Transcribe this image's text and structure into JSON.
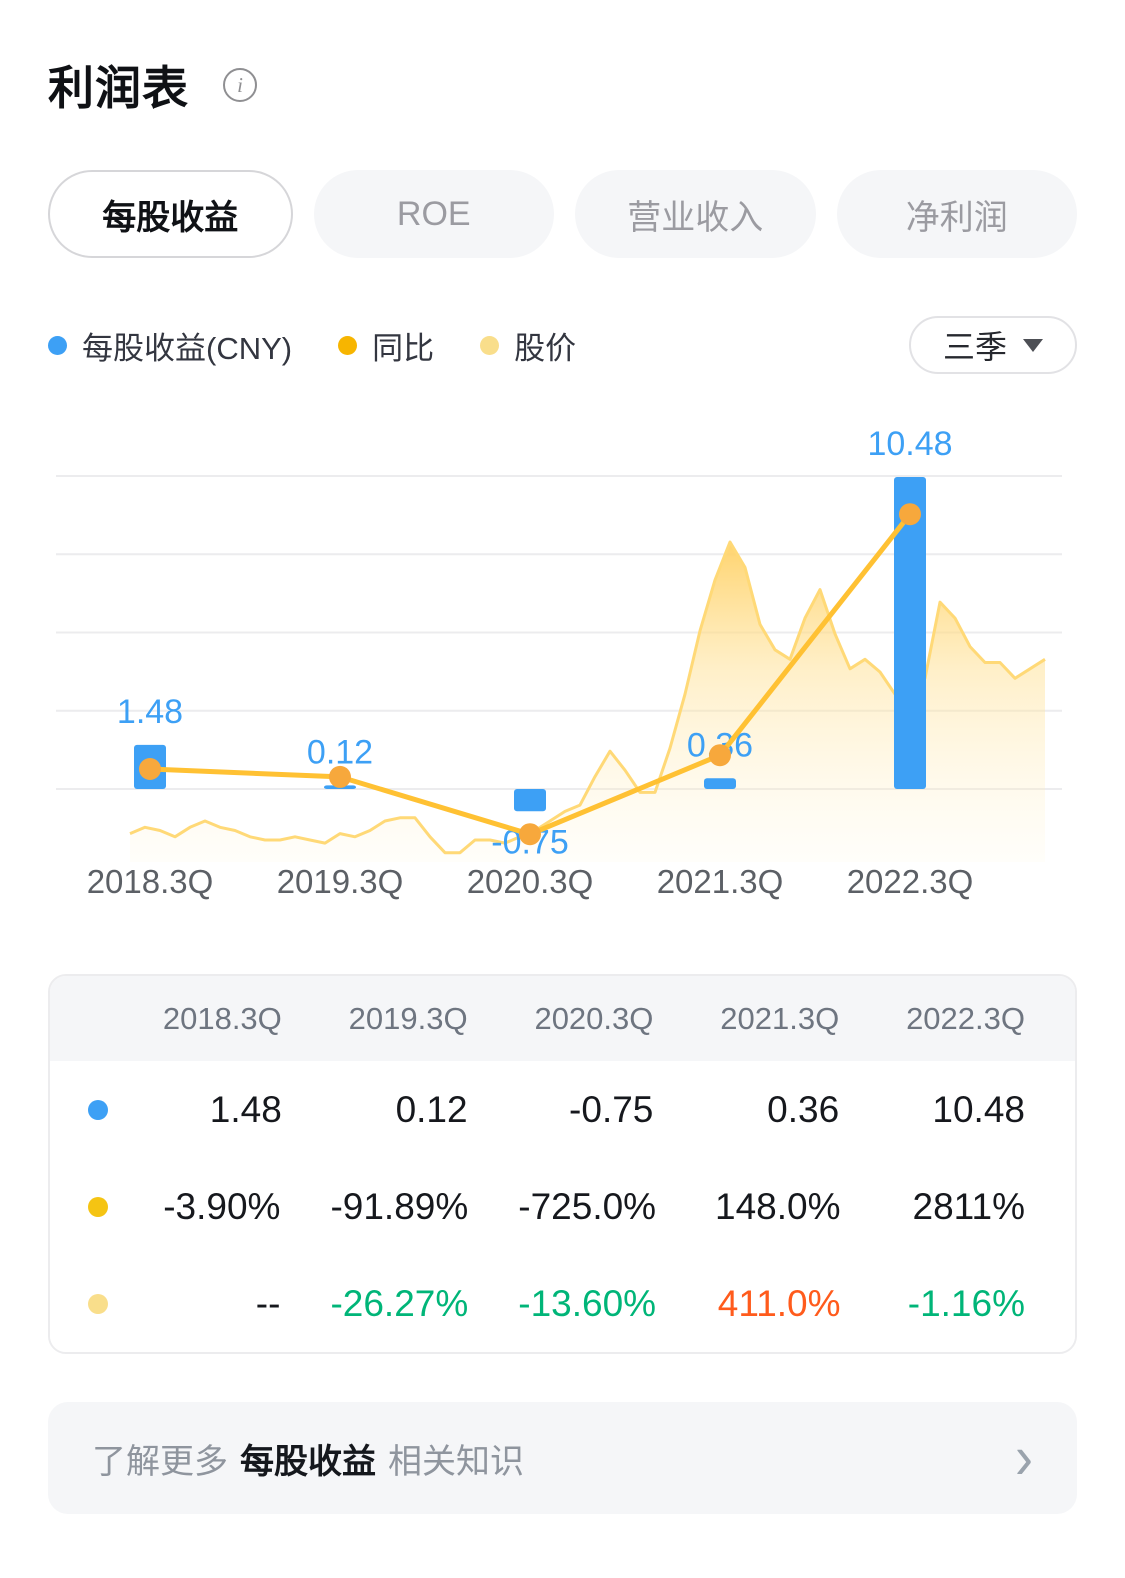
{
  "header": {
    "title": "利润表"
  },
  "tabs": [
    {
      "label": "每股收益",
      "active": true
    },
    {
      "label": "ROE",
      "active": false
    },
    {
      "label": "营业收入",
      "active": false
    },
    {
      "label": "净利润",
      "active": false
    }
  ],
  "legend": [
    {
      "label": "每股收益(CNY)",
      "color": "#3DA0F5"
    },
    {
      "label": "同比",
      "color": "#F7B500"
    },
    {
      "label": "股价",
      "color": "#F9DE8B"
    }
  ],
  "period_selector": {
    "label": "三季"
  },
  "chart_data": {
    "type": "bar",
    "title": "",
    "categories": [
      "2018.3Q",
      "2019.3Q",
      "2020.3Q",
      "2021.3Q",
      "2022.3Q"
    ],
    "series": [
      {
        "name": "每股收益(CNY)",
        "type": "bar",
        "unit": "CNY",
        "color": "#3DA0F5",
        "values": [
          1.48,
          0.12,
          -0.75,
          0.36,
          10.48
        ]
      },
      {
        "name": "同比",
        "type": "line",
        "unit": "%",
        "color": "#FFC133",
        "marker_color": "#F7A83C",
        "values": [
          -3.9,
          -91.89,
          -725.0,
          148.0,
          2811
        ]
      },
      {
        "name": "股价",
        "type": "area",
        "color": "#FFD977",
        "values_relative": [
          8,
          10,
          9,
          7,
          10,
          12,
          10,
          9,
          7,
          6,
          6,
          7,
          6,
          5,
          8,
          7,
          9,
          12,
          13,
          13,
          7,
          2,
          2,
          6,
          6,
          5,
          7,
          9,
          12,
          15,
          17,
          26,
          34,
          28,
          21,
          21,
          35,
          52,
          72,
          88,
          100,
          92,
          74,
          66,
          63,
          76,
          85,
          71,
          60,
          63,
          59,
          52,
          57,
          57,
          81,
          76,
          67,
          62,
          62,
          57,
          60,
          63
        ]
      }
    ],
    "bar_value_labels": [
      "1.48",
      "0.12",
      "-0.75",
      "0.36",
      "10.48"
    ],
    "label_color": "#3DA0F5",
    "grid": true,
    "gridline_count": 5,
    "legend_position": "top"
  },
  "table": {
    "columns": [
      "2018.3Q",
      "2019.3Q",
      "2020.3Q",
      "2021.3Q",
      "2022.3Q"
    ],
    "rows": [
      {
        "series": "每股收益(CNY)",
        "dot_color": "#3DA0F5",
        "cells": [
          {
            "text": "1.48"
          },
          {
            "text": "0.12"
          },
          {
            "text": "-0.75"
          },
          {
            "text": "0.36"
          },
          {
            "text": "10.48"
          }
        ]
      },
      {
        "series": "同比",
        "dot_color": "#F5C413",
        "cells": [
          {
            "text": "-3.90%"
          },
          {
            "text": "-91.89%"
          },
          {
            "text": "-725.0%"
          },
          {
            "text": "148.0%"
          },
          {
            "text": "2811%"
          }
        ]
      },
      {
        "series": "股价",
        "dot_color": "#F9DE8B",
        "cells": [
          {
            "text": "--"
          },
          {
            "text": "-26.27%",
            "color": "#00B578"
          },
          {
            "text": "-13.60%",
            "color": "#00B578"
          },
          {
            "text": "411.0%",
            "color": "#FF5B1C"
          },
          {
            "text": "-1.16%",
            "color": "#00B578"
          }
        ]
      }
    ]
  },
  "footer": {
    "prefix": "了解更多",
    "highlight": "每股收益",
    "suffix": "相关知识",
    "chevron": "›"
  }
}
